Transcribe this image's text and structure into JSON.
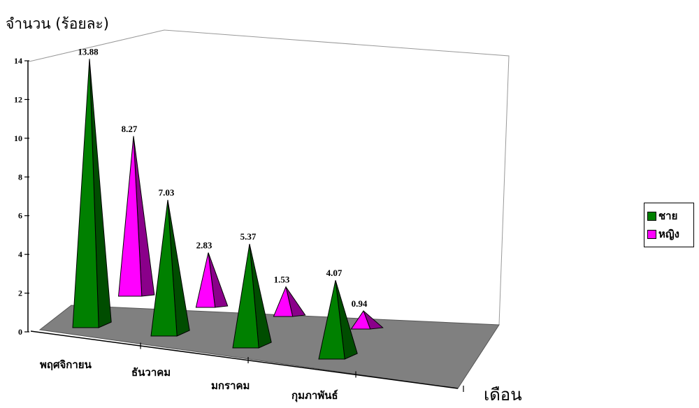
{
  "chart_data": {
    "type": "bar",
    "subtype": "3d-pyramid",
    "title": "",
    "ylabel": "จำนวน (ร้อยละ)",
    "xlabel": "เดือน",
    "ylim": [
      0,
      14
    ],
    "yticks": [
      "0",
      "2",
      "4",
      "6",
      "8",
      "10",
      "12",
      "14"
    ],
    "categories": [
      "พฤศจิกายน",
      "ธันวาคม",
      "มกราคม",
      "กุมภาพันธ์"
    ],
    "series": [
      {
        "name": "ชาย",
        "color": "#008000",
        "values": [
          13.88,
          7.03,
          5.37,
          4.07
        ],
        "labels": [
          "13.88",
          "7.03",
          "5.37",
          "4.07"
        ]
      },
      {
        "name": "หญิง",
        "color": "#FF00FF",
        "values": [
          8.27,
          2.83,
          1.53,
          0.94
        ],
        "labels": [
          "8.27",
          "2.83",
          "1.53",
          "0.94"
        ]
      }
    ],
    "legend_position": "right",
    "floor_color": "#808080",
    "grid": false
  }
}
